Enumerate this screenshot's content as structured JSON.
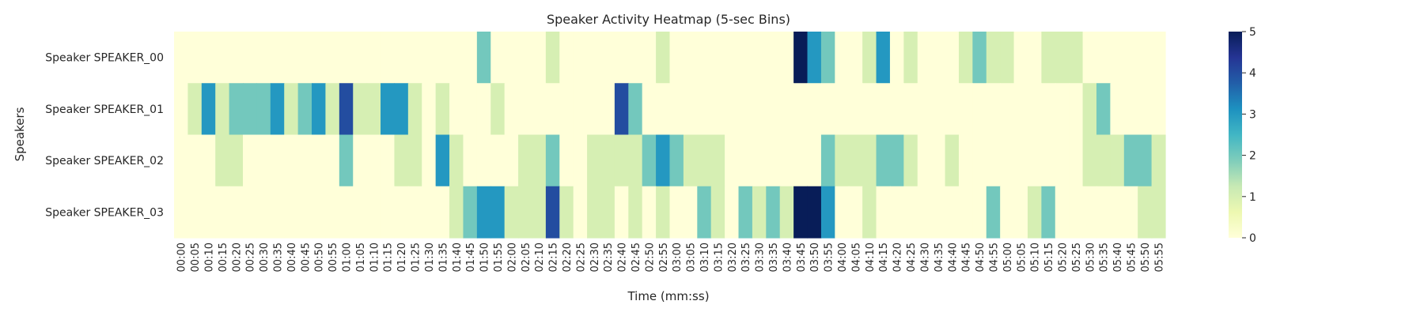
{
  "chart_data": {
    "type": "heatmap",
    "title": "Speaker Activity Heatmap (5-sec Bins)",
    "xlabel": "Time (mm:ss)",
    "ylabel": "Speakers",
    "rows": [
      "Speaker SPEAKER_00",
      "Speaker SPEAKER_01",
      "Speaker SPEAKER_02",
      "Speaker SPEAKER_03"
    ],
    "columns": [
      "00:00",
      "00:05",
      "00:10",
      "00:15",
      "00:20",
      "00:25",
      "00:30",
      "00:35",
      "00:40",
      "00:45",
      "00:50",
      "00:55",
      "01:00",
      "01:05",
      "01:10",
      "01:15",
      "01:20",
      "01:25",
      "01:30",
      "01:35",
      "01:40",
      "01:45",
      "01:50",
      "01:55",
      "02:00",
      "02:05",
      "02:10",
      "02:15",
      "02:20",
      "02:25",
      "02:30",
      "02:35",
      "02:40",
      "02:45",
      "02:50",
      "02:55",
      "03:00",
      "03:05",
      "03:10",
      "03:15",
      "03:20",
      "03:25",
      "03:30",
      "03:35",
      "03:40",
      "03:45",
      "03:50",
      "03:55",
      "04:00",
      "04:05",
      "04:10",
      "04:15",
      "04:20",
      "04:25",
      "04:30",
      "04:35",
      "04:40",
      "04:45",
      "04:50",
      "04:55",
      "05:00",
      "05:05",
      "05:10",
      "05:15",
      "05:20",
      "05:25",
      "05:30",
      "05:35",
      "05:40",
      "05:45",
      "05:50",
      "05:55"
    ],
    "values": [
      [
        0,
        0,
        0,
        0,
        0,
        0,
        0,
        0,
        0,
        0,
        0,
        0,
        0,
        0,
        0,
        0,
        0,
        0,
        0,
        0,
        0,
        0,
        2,
        0,
        0,
        0,
        0,
        1,
        0,
        0,
        0,
        0,
        0,
        0,
        0,
        1,
        0,
        0,
        0,
        0,
        0,
        0,
        0,
        0,
        0,
        5,
        3,
        2,
        0,
        0,
        1,
        3,
        0,
        1,
        0,
        0,
        0,
        1,
        2,
        1,
        1,
        0,
        0,
        1,
        1,
        1,
        0,
        0,
        0,
        0,
        0,
        0
      ],
      [
        0,
        1,
        3,
        1,
        2,
        2,
        2,
        3,
        1,
        2,
        3,
        1,
        4,
        1,
        1,
        3,
        3,
        1,
        0,
        1,
        0,
        0,
        0,
        1,
        0,
        0,
        0,
        0,
        0,
        0,
        0,
        0,
        4,
        2,
        0,
        0,
        0,
        0,
        0,
        0,
        0,
        0,
        0,
        0,
        0,
        0,
        0,
        0,
        0,
        0,
        0,
        0,
        0,
        0,
        0,
        0,
        0,
        0,
        0,
        0,
        0,
        0,
        0,
        0,
        0,
        0,
        1,
        2,
        0,
        0,
        0,
        0
      ],
      [
        0,
        0,
        0,
        1,
        1,
        0,
        0,
        0,
        0,
        0,
        0,
        0,
        2,
        0,
        0,
        0,
        1,
        1,
        0,
        3,
        1,
        0,
        0,
        0,
        0,
        1,
        1,
        2,
        0,
        0,
        1,
        1,
        1,
        1,
        2,
        3,
        2,
        1,
        1,
        1,
        0,
        0,
        0,
        0,
        0,
        0,
        0,
        2,
        1,
        1,
        1,
        2,
        2,
        1,
        0,
        0,
        1,
        0,
        0,
        0,
        0,
        0,
        0,
        0,
        0,
        0,
        1,
        1,
        1,
        2,
        2,
        1
      ],
      [
        0,
        0,
        0,
        0,
        0,
        0,
        0,
        0,
        0,
        0,
        0,
        0,
        0,
        0,
        0,
        0,
        0,
        0,
        0,
        0,
        1,
        2,
        3,
        3,
        1,
        1,
        1,
        4,
        1,
        0,
        1,
        1,
        0,
        1,
        0,
        1,
        0,
        0,
        2,
        1,
        0,
        2,
        1,
        2,
        1,
        5,
        5,
        3,
        0,
        0,
        1,
        0,
        0,
        0,
        0,
        0,
        0,
        0,
        0,
        2,
        0,
        0,
        1,
        2,
        0,
        0,
        0,
        0,
        0,
        0,
        1,
        1
      ]
    ],
    "vmin": 0,
    "vmax": 5,
    "colorbar_ticks": [
      "0",
      "1",
      "2",
      "3",
      "4",
      "5"
    ],
    "colormap": [
      "#ffffd9",
      "#edf8b1",
      "#c7e9b4",
      "#7fcdbb",
      "#41b6c4",
      "#1d91c0",
      "#225ea8",
      "#253494",
      "#081d58"
    ],
    "grid": false
  }
}
